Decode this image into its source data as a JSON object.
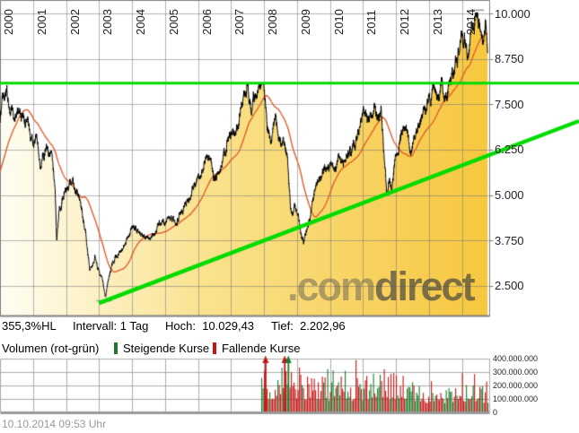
{
  "watermark": {
    "light": ".com",
    "dark": "direct"
  },
  "info_bar": {
    "change_hl": "355,3%HL",
    "interval_label": "Intervall:",
    "interval_value": "1 Tag",
    "high_label": "Hoch:",
    "high_value": "10.029,43",
    "low_label": "Tief:",
    "low_value": "2.202,96"
  },
  "volume_legend": {
    "title": "Volumen (rot-grün)",
    "rising": "Steigende Kurse",
    "falling": "Fallende Kurse"
  },
  "footer": {
    "timestamp": "10.10.2014 09:53 Uhr"
  },
  "colors": {
    "price": "#000000",
    "moving_average": "#E05A28",
    "trend_green": "#00DC00",
    "grid": "#A8A8A8",
    "border": "#808080",
    "fill_left": "#FFFEF4",
    "fill_mid": "#FAE28E",
    "fill_right": "#F7C73E",
    "volume_up": "#1B7A2B",
    "volume_down": "#C41414",
    "axis_text": "#222222",
    "timestamp_gray": "#999999"
  },
  "chart_data": {
    "type": "line",
    "high": 10029.43,
    "low": 2202.96,
    "x_axis": {
      "tick_labels": [
        "2000",
        "2001",
        "2002",
        "2003",
        "2004",
        "2005",
        "2006",
        "2007",
        "2008",
        "2009",
        "2010",
        "2011",
        "2012",
        "2013",
        "2014"
      ]
    },
    "y_axis": {
      "tick_labels": [
        "10.000",
        "8.750",
        "7.500",
        "6.250",
        "5.000",
        "3.750",
        "2.500"
      ],
      "tick_values": [
        10000,
        8750,
        7500,
        6250,
        5000,
        3750,
        2500
      ]
    },
    "resistance_line_value": 8080,
    "trend_line": {
      "year_start": 2003.0,
      "value_start": 2030,
      "year_end": 2017.55,
      "value_end": 7040
    },
    "extreme_markers": {
      "high_year": 2014.45,
      "low_year": 2003.2
    },
    "ma_days": 200,
    "preroll_anchors": [
      [
        1999.0,
        5050
      ],
      [
        1999.25,
        5100
      ],
      [
        1999.5,
        5400
      ],
      [
        1999.75,
        5650
      ],
      [
        1999.95,
        6700
      ]
    ],
    "price_anchors": [
      [
        2000.0,
        6960
      ],
      [
        2000.1,
        7650
      ],
      [
        2000.2,
        8060
      ],
      [
        2000.3,
        7550
      ],
      [
        2000.45,
        7300
      ],
      [
        2000.55,
        7500
      ],
      [
        2000.7,
        7050
      ],
      [
        2000.85,
        6850
      ],
      [
        2000.95,
        6400
      ],
      [
        2001.1,
        6600
      ],
      [
        2001.25,
        6000
      ],
      [
        2001.4,
        6200
      ],
      [
        2001.55,
        5950
      ],
      [
        2001.67,
        5150
      ],
      [
        2001.72,
        3790
      ],
      [
        2001.8,
        4600
      ],
      [
        2001.95,
        5150
      ],
      [
        2002.1,
        5250
      ],
      [
        2002.2,
        5350
      ],
      [
        2002.35,
        5050
      ],
      [
        2002.5,
        4450
      ],
      [
        2002.6,
        3950
      ],
      [
        2002.72,
        2850
      ],
      [
        2002.8,
        3100
      ],
      [
        2002.88,
        3350
      ],
      [
        2003.0,
        2900
      ],
      [
        2003.1,
        2650
      ],
      [
        2003.2,
        2203
      ],
      [
        2003.35,
        2950
      ],
      [
        2003.5,
        3250
      ],
      [
        2003.65,
        3450
      ],
      [
        2003.8,
        3650
      ],
      [
        2003.95,
        3950
      ],
      [
        2004.1,
        4100
      ],
      [
        2004.25,
        3950
      ],
      [
        2004.4,
        3880
      ],
      [
        2004.6,
        3830
      ],
      [
        2004.75,
        4050
      ],
      [
        2004.95,
        4250
      ],
      [
        2005.1,
        4300
      ],
      [
        2005.25,
        4400
      ],
      [
        2005.35,
        4250
      ],
      [
        2005.55,
        4600
      ],
      [
        2005.75,
        5050
      ],
      [
        2005.95,
        5400
      ],
      [
        2006.1,
        5700
      ],
      [
        2006.3,
        6050
      ],
      [
        2006.4,
        5900
      ],
      [
        2006.47,
        5350
      ],
      [
        2006.6,
        5700
      ],
      [
        2006.8,
        6100
      ],
      [
        2006.95,
        6550
      ],
      [
        2007.1,
        6750
      ],
      [
        2007.2,
        6950
      ],
      [
        2007.35,
        7400
      ],
      [
        2007.5,
        8080
      ],
      [
        2007.62,
        7350
      ],
      [
        2007.72,
        7800
      ],
      [
        2007.8,
        7650
      ],
      [
        2007.9,
        7900
      ],
      [
        2007.98,
        8050
      ],
      [
        2008.1,
        6850
      ],
      [
        2008.2,
        6550
      ],
      [
        2008.35,
        6950
      ],
      [
        2008.5,
        6400
      ],
      [
        2008.65,
        6200
      ],
      [
        2008.72,
        5750
      ],
      [
        2008.8,
        4750
      ],
      [
        2008.87,
        4400
      ],
      [
        2008.95,
        4700
      ],
      [
        2009.05,
        4350
      ],
      [
        2009.12,
        4000
      ],
      [
        2009.2,
        3666
      ],
      [
        2009.35,
        4300
      ],
      [
        2009.5,
        4950
      ],
      [
        2009.65,
        5400
      ],
      [
        2009.8,
        5650
      ],
      [
        2009.95,
        5900
      ],
      [
        2010.05,
        5750
      ],
      [
        2010.15,
        5550
      ],
      [
        2010.3,
        6150
      ],
      [
        2010.42,
        5900
      ],
      [
        2010.55,
        6050
      ],
      [
        2010.7,
        6250
      ],
      [
        2010.85,
        6650
      ],
      [
        2010.98,
        6950
      ],
      [
        2011.1,
        7150
      ],
      [
        2011.2,
        7050
      ],
      [
        2011.35,
        7500
      ],
      [
        2011.45,
        7250
      ],
      [
        2011.55,
        7450
      ],
      [
        2011.62,
        6450
      ],
      [
        2011.68,
        5650
      ],
      [
        2011.73,
        5050
      ],
      [
        2011.8,
        5500
      ],
      [
        2011.87,
        5250
      ],
      [
        2011.95,
        5900
      ],
      [
        2012.05,
        6250
      ],
      [
        2012.2,
        6900
      ],
      [
        2012.28,
        7100
      ],
      [
        2012.4,
        6350
      ],
      [
        2012.47,
        6100
      ],
      [
        2012.6,
        6600
      ],
      [
        2012.75,
        7100
      ],
      [
        2012.9,
        7350
      ],
      [
        2013.0,
        7700
      ],
      [
        2013.15,
        7800
      ],
      [
        2013.3,
        7700
      ],
      [
        2013.4,
        8050
      ],
      [
        2013.47,
        7700
      ],
      [
        2013.6,
        8150
      ],
      [
        2013.75,
        8550
      ],
      [
        2013.9,
        9150
      ],
      [
        2014.0,
        9550
      ],
      [
        2014.1,
        9350
      ],
      [
        2014.18,
        9200
      ],
      [
        2014.3,
        9650
      ],
      [
        2014.38,
        9500
      ],
      [
        2014.45,
        10029.43
      ],
      [
        2014.52,
        9800
      ],
      [
        2014.58,
        9250
      ],
      [
        2014.63,
        9050
      ],
      [
        2014.72,
        9750
      ],
      [
        2014.76,
        9450
      ],
      [
        2014.78,
        8850
      ]
    ],
    "volume": {
      "start_year": 2007.92,
      "end_year": 2014.78,
      "y_tick_labels": [
        "400.000.000",
        "300.000.000",
        "200.000.000",
        "100.000.000",
        "0"
      ],
      "y_tick_values_millions": [
        400,
        300,
        200,
        100,
        0
      ],
      "avg_anchors_millions": [
        [
          2007.92,
          230
        ],
        [
          2008.2,
          210
        ],
        [
          2008.8,
          240
        ],
        [
          2009.3,
          210
        ],
        [
          2009.8,
          180
        ],
        [
          2010.35,
          215
        ],
        [
          2010.9,
          165
        ],
        [
          2011.55,
          230
        ],
        [
          2011.9,
          195
        ],
        [
          2012.4,
          175
        ],
        [
          2012.9,
          150
        ],
        [
          2013.5,
          150
        ],
        [
          2014.1,
          130
        ],
        [
          2014.78,
          150
        ]
      ],
      "arrow_spikes": [
        {
          "year": 2008.05,
          "direction": "falling"
        },
        {
          "year": 2008.63,
          "direction": "falling"
        },
        {
          "year": 2008.74,
          "direction": "rising"
        }
      ]
    }
  }
}
